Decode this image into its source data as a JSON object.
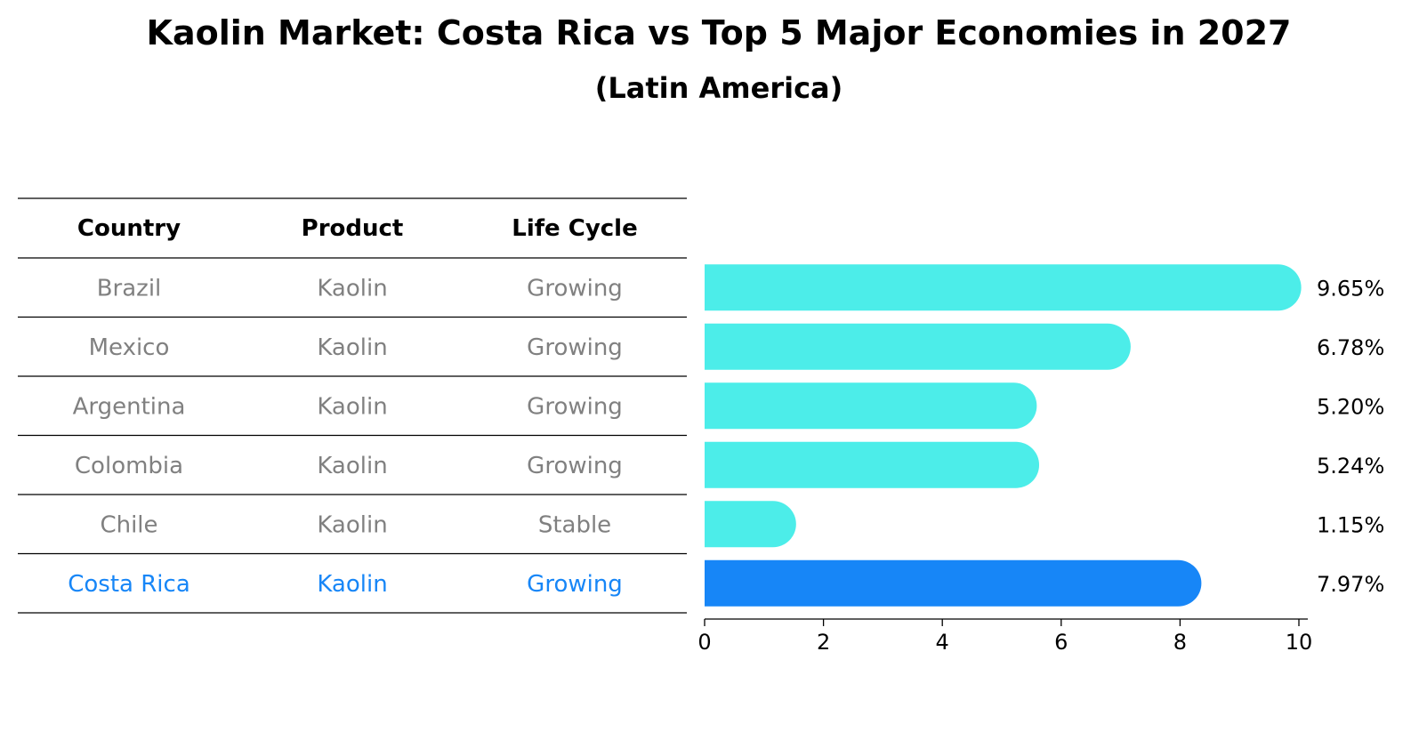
{
  "chart_data": {
    "type": "bar",
    "orientation": "horizontal",
    "title": "Kaolin Market: Costa Rica vs Top 5 Major Economies in 2027",
    "subtitle": "(Latin America)",
    "table": {
      "columns": [
        "Country",
        "Product",
        "Life Cycle"
      ],
      "rows": [
        {
          "country": "Brazil",
          "product": "Kaolin",
          "life_cycle": "Growing",
          "highlight": false
        },
        {
          "country": "Mexico",
          "product": "Kaolin",
          "life_cycle": "Growing",
          "highlight": false
        },
        {
          "country": "Argentina",
          "product": "Kaolin",
          "life_cycle": "Growing",
          "highlight": false
        },
        {
          "country": "Colombia",
          "product": "Kaolin",
          "life_cycle": "Growing",
          "highlight": false
        },
        {
          "country": "Chile",
          "product": "Kaolin",
          "life_cycle": "Stable",
          "highlight": false
        },
        {
          "country": "Costa Rica",
          "product": "Kaolin",
          "life_cycle": "Growing",
          "highlight": true
        }
      ]
    },
    "categories": [
      "Brazil",
      "Mexico",
      "Argentina",
      "Colombia",
      "Chile",
      "Costa Rica"
    ],
    "values": [
      9.65,
      6.78,
      5.2,
      5.24,
      1.15,
      7.97
    ],
    "value_labels": [
      "9.65%",
      "6.78%",
      "5.20%",
      "5.24%",
      "1.15%",
      "7.97%"
    ],
    "xlim": [
      0,
      10
    ],
    "xticks": [
      0,
      2,
      4,
      6,
      8,
      10
    ],
    "xtick_labels": [
      "0",
      "2",
      "4",
      "6",
      "8",
      "10"
    ],
    "xlabel": "",
    "ylabel": "",
    "grid": false,
    "legend": "none"
  },
  "colors": {
    "bar_default": "#4CEDE9",
    "bar_highlight": "#1786F7",
    "text_default": "#808080",
    "text_highlight": "#1786F7"
  }
}
